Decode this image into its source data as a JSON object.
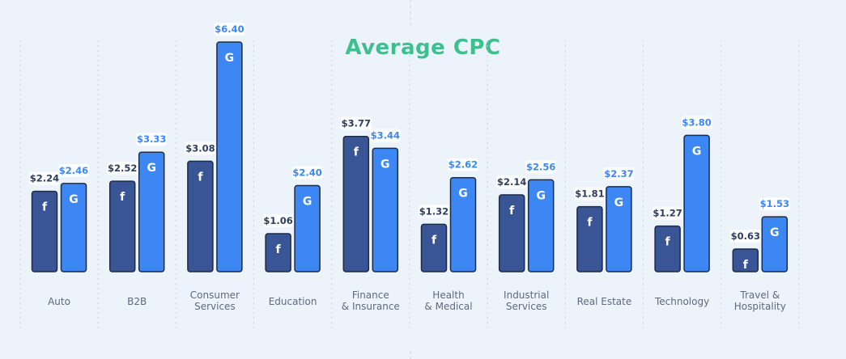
{
  "chart_data": {
    "type": "bar",
    "title": "Average CPC",
    "categories": [
      [
        "Auto"
      ],
      [
        "B2B"
      ],
      [
        "Consumer",
        "Services"
      ],
      [
        "Education"
      ],
      [
        "Finance",
        "& Insurance"
      ],
      [
        "Health",
        "& Medical"
      ],
      [
        "Industrial",
        "Services"
      ],
      [
        "Real Estate"
      ],
      [
        "Technology"
      ],
      [
        "Travel &",
        "Hospitality"
      ]
    ],
    "series": [
      {
        "icon": "facebook-icon",
        "color": "#3a5596",
        "values": [
          2.24,
          2.52,
          3.08,
          1.06,
          3.77,
          1.32,
          2.14,
          1.81,
          1.27,
          0.63
        ],
        "labels": [
          "$2.24",
          "$2.52",
          "$3.08",
          "$1.06",
          "$3.77",
          "$1.32",
          "$2.14",
          "$1.81",
          "$1.27",
          "$0.63"
        ]
      },
      {
        "icon": "google-icon",
        "color": "#3d87f5",
        "values": [
          2.46,
          3.33,
          6.4,
          2.4,
          3.44,
          2.62,
          2.56,
          2.37,
          3.8,
          1.53
        ],
        "labels": [
          "$2.46",
          "$3.33",
          "$6.40",
          "$2.40",
          "$3.44",
          "$2.62",
          "$2.56",
          "$2.37",
          "$3.80",
          "$1.53"
        ]
      }
    ],
    "ylim": [
      0,
      6.4
    ],
    "grid": false,
    "legend": "none"
  },
  "colors": {
    "background": "#ecf3fb",
    "title": "#3dbf8e",
    "divider": "#c9d4e3",
    "label_text": "#5e6b7c",
    "bar_outline": "#1d2b45"
  }
}
